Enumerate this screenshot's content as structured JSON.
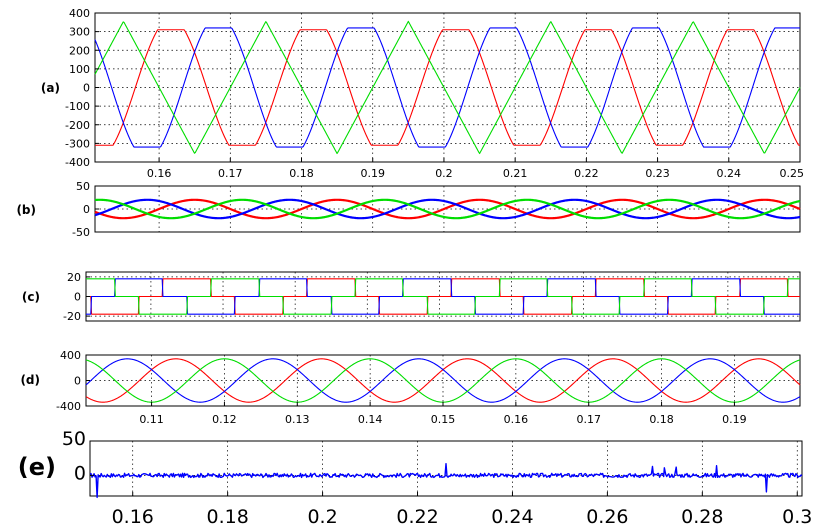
{
  "figure": {
    "background": "#ffffff"
  },
  "colors": {
    "a": "#ff0000",
    "b": "#0000ff",
    "c": "#00dd00"
  },
  "chart_data": [
    {
      "id": "a",
      "type": "line",
      "label": "(a)",
      "xlim": [
        0.151,
        0.25
      ],
      "ylim": [
        -400,
        400
      ],
      "xticks": [
        0.16,
        0.17,
        0.18,
        0.19,
        0.2,
        0.21,
        0.22,
        0.23,
        0.24,
        0.25
      ],
      "xtick_labels": [
        "0.16",
        "0.17",
        "0.18",
        "0.19",
        "0.2",
        "0.21",
        "0.22",
        "0.23",
        "0.24",
        "0.25"
      ],
      "yticks": [
        400,
        300,
        200,
        100,
        0,
        -100,
        -200,
        -300,
        -400
      ],
      "ytick_labels": [
        "400",
        "300",
        "200",
        "100",
        "0",
        "-100",
        "-200",
        "-300",
        "-400"
      ],
      "grid": true,
      "series": [
        {
          "color": "red",
          "amplitude": 310,
          "peak_clip": 310,
          "freq_hz": 50,
          "phase_deg": 60,
          "shape": "flat-top"
        },
        {
          "color": "blue",
          "amplitude": 320,
          "peak_clip": 320,
          "freq_hz": 50,
          "phase_deg": -60,
          "shape": "flat-top"
        },
        {
          "color": "green",
          "amplitude": 355,
          "freq_hz": 50,
          "phase_deg": 180,
          "shape": "triangular"
        }
      ]
    },
    {
      "id": "b",
      "type": "line",
      "label": "(b)",
      "xlim": [
        0.151,
        0.25
      ],
      "ylim": [
        -50,
        50
      ],
      "yticks": [
        50,
        0,
        -50
      ],
      "ytick_labels": [
        "50",
        "0",
        "-50"
      ],
      "grid": true,
      "series": [
        {
          "color": "red",
          "amplitude": 20,
          "freq_hz": 50,
          "phase_deg": 0
        },
        {
          "color": "blue",
          "amplitude": 20,
          "freq_hz": 50,
          "phase_deg": 120
        },
        {
          "color": "green",
          "amplitude": 20,
          "freq_hz": 50,
          "phase_deg": 240
        }
      ]
    },
    {
      "id": "c",
      "type": "line",
      "label": "(c)",
      "xlim": [
        0.151,
        0.25
      ],
      "ylim": [
        -25,
        25
      ],
      "yticks": [
        20,
        0,
        -20
      ],
      "ytick_labels": [
        "20",
        "0",
        "-20"
      ],
      "grid": true,
      "series": [
        {
          "color": "red",
          "level": 18,
          "freq_hz": 50,
          "phase_deg": 0,
          "shape": "six-step"
        },
        {
          "color": "blue",
          "level": 18,
          "freq_hz": 50,
          "phase_deg": 120,
          "shape": "six-step"
        },
        {
          "color": "green",
          "level": 18,
          "freq_hz": 50,
          "phase_deg": 240,
          "shape": "six-step"
        }
      ]
    },
    {
      "id": "d",
      "type": "line",
      "label": "(d)",
      "xlim": [
        0.101,
        0.199
      ],
      "ylim": [
        -400,
        400
      ],
      "xticks": [
        0.11,
        0.12,
        0.13,
        0.14,
        0.15,
        0.16,
        0.17,
        0.18,
        0.19
      ],
      "xtick_labels": [
        "0.11",
        "0.12",
        "0.13",
        "0.14",
        "0.15",
        "0.16",
        "0.17",
        "0.18",
        "0.19"
      ],
      "yticks": [
        400,
        0,
        -400
      ],
      "ytick_labels": [
        "400",
        "0",
        "-400"
      ],
      "grid": true,
      "series": [
        {
          "color": "red",
          "amplitude": 340,
          "freq_hz": 50,
          "phase_deg": 210
        },
        {
          "color": "blue",
          "amplitude": 340,
          "freq_hz": 50,
          "phase_deg": 330
        },
        {
          "color": "green",
          "amplitude": 340,
          "freq_hz": 50,
          "phase_deg": 90
        }
      ]
    },
    {
      "id": "e",
      "type": "line",
      "label": "(e)",
      "xlim": [
        0.151,
        0.301
      ],
      "ylim": [
        -30,
        50
      ],
      "xticks": [
        0.16,
        0.18,
        0.2,
        0.22,
        0.24,
        0.26,
        0.28,
        0.3
      ],
      "xtick_labels": [
        "0.16",
        "0.18",
        "0.2",
        "0.22",
        "0.24",
        "0.26",
        "0.28",
        "0.3"
      ],
      "yticks": [
        50,
        0
      ],
      "ytick_labels": [
        "50",
        "0"
      ],
      "grid": true,
      "series": [
        {
          "color": "blue",
          "baseline": 0,
          "noise": 3,
          "spikes": [
            {
              "x": 0.1525,
              "y": -32
            },
            {
              "x": 0.226,
              "y": 17
            },
            {
              "x": 0.2695,
              "y": 13
            },
            {
              "x": 0.272,
              "y": 11
            },
            {
              "x": 0.2745,
              "y": 12
            },
            {
              "x": 0.283,
              "y": 14
            },
            {
              "x": 0.2935,
              "y": -24
            }
          ]
        }
      ]
    }
  ]
}
